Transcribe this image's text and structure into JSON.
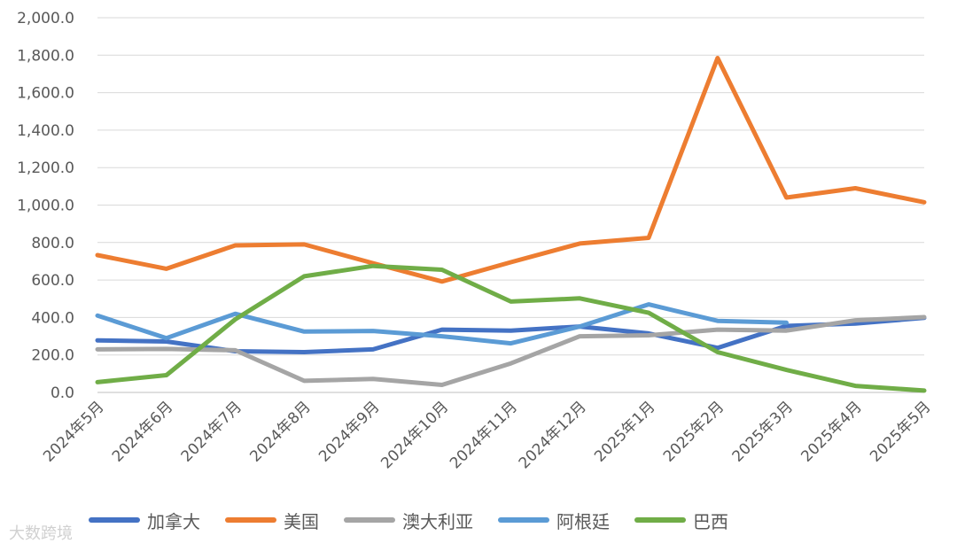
{
  "chart_data": {
    "type": "line",
    "title": "",
    "xlabel": "",
    "ylabel": "",
    "ylim": [
      0,
      2000
    ],
    "yticks": [
      "0.0",
      "200.0",
      "400.0",
      "600.0",
      "800.0",
      "1,000.0",
      "1,200.0",
      "1,400.0",
      "1,600.0",
      "1,800.0",
      "2,000.0"
    ],
    "categories": [
      "2024年5月",
      "2024年6月",
      "2024年7月",
      "2024年8月",
      "2024年9月",
      "2024年10月",
      "2024年11月",
      "2024年12月",
      "2025年1月",
      "2025年2月",
      "2025年3月",
      "2025年4月",
      "2025年5月"
    ],
    "grid": true,
    "legend_position": "bottom",
    "series": [
      {
        "name": "加拿大",
        "color": "#4472C4",
        "values": [
          278,
          272,
          220,
          215,
          230,
          335,
          330,
          352,
          315,
          238,
          355,
          368,
          398
        ]
      },
      {
        "name": "美国",
        "color": "#ED7D31",
        "values": [
          733,
          660,
          785,
          790,
          690,
          592,
          695,
          795,
          825,
          1785,
          1040,
          1090,
          1015
        ]
      },
      {
        "name": "澳大利亚",
        "color": "#A5A5A5",
        "values": [
          230,
          232,
          225,
          62,
          72,
          40,
          155,
          300,
          305,
          335,
          330,
          385,
          402
        ]
      },
      {
        "name": "阿根廷",
        "color": "#5B9BD5",
        "values": [
          410,
          290,
          420,
          325,
          328,
          300,
          262,
          352,
          470,
          382,
          372,
          null,
          null
        ]
      },
      {
        "name": "巴西",
        "color": "#70AD47",
        "values": [
          55,
          92,
          390,
          620,
          675,
          655,
          485,
          502,
          425,
          215,
          120,
          35,
          10
        ]
      }
    ]
  },
  "watermark": "大数跨境"
}
